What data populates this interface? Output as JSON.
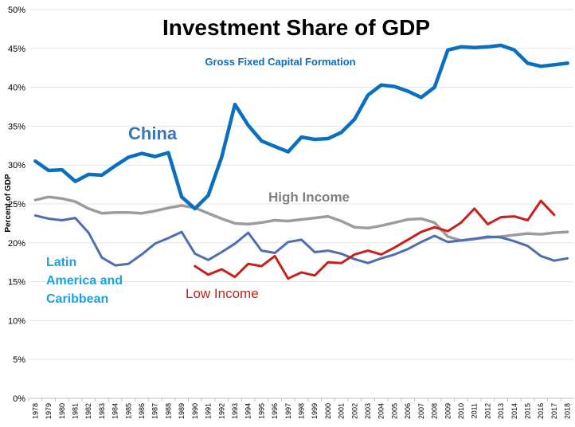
{
  "chart_data": {
    "type": "line",
    "title": "Investment Share of GDP",
    "subtitle": "Gross Fixed Capital Formation",
    "ylabel": "Percent of GDP",
    "xlabel": "",
    "ylim": [
      0,
      50
    ],
    "ytick_values": [
      0,
      5,
      10,
      15,
      20,
      25,
      30,
      35,
      40,
      45,
      50
    ],
    "ytick_labels": [
      "0%",
      "5%",
      "10%",
      "15%",
      "20%",
      "25%",
      "30%",
      "35%",
      "40%",
      "45%",
      "50%"
    ],
    "x": [
      "1978",
      "1979",
      "1980",
      "1981",
      "1982",
      "1983",
      "1984",
      "1985",
      "1986",
      "1987",
      "1988",
      "1989",
      "1990",
      "1991",
      "1992",
      "1993",
      "1994",
      "1995",
      "1996",
      "1997",
      "1998",
      "1999",
      "2000",
      "2001",
      "2002",
      "2003",
      "2004",
      "2005",
      "2006",
      "2007",
      "2008",
      "2009",
      "2010",
      "2011",
      "2012",
      "2013",
      "2014",
      "2015",
      "2016",
      "2017",
      "2018"
    ],
    "series": [
      {
        "name": "China",
        "label": "China",
        "color": "#0a6fc0",
        "label_color": "#3a76b8",
        "values": [
          30.5,
          29.3,
          29.4,
          27.9,
          28.8,
          28.7,
          29.9,
          31.0,
          31.5,
          31.1,
          31.6,
          25.9,
          24.4,
          26.1,
          31.0,
          37.8,
          35.1,
          33.1,
          32.4,
          31.7,
          33.6,
          33.3,
          33.4,
          34.2,
          35.9,
          39.0,
          40.3,
          40.1,
          39.5,
          38.7,
          40.0,
          44.8,
          45.2,
          45.1,
          45.2,
          45.4,
          44.8,
          43.1,
          42.7,
          42.9,
          43.1
        ]
      },
      {
        "name": "High Income",
        "label": "High Income",
        "color": "#9c9c9c",
        "label_color": "#808080",
        "values": [
          25.5,
          25.9,
          25.7,
          25.3,
          24.4,
          23.8,
          23.9,
          23.9,
          23.8,
          24.1,
          24.5,
          24.8,
          24.5,
          23.8,
          23.1,
          22.5,
          22.4,
          22.6,
          22.9,
          22.8,
          23.0,
          23.2,
          23.4,
          22.8,
          22.0,
          21.9,
          22.2,
          22.6,
          23.0,
          23.1,
          22.6,
          20.8,
          20.3,
          20.5,
          20.7,
          20.8,
          21.0,
          21.2,
          21.1,
          21.3,
          21.4
        ]
      },
      {
        "name": "Latin America and Caribbean",
        "label_lines": [
          "Latin",
          "America and",
          "Caribbean"
        ],
        "color": "#4d6fae",
        "label_color": "#1aa3dc",
        "values": [
          23.5,
          23.1,
          22.9,
          23.2,
          21.3,
          18.1,
          17.1,
          17.3,
          18.5,
          19.9,
          20.6,
          21.4,
          18.6,
          17.8,
          18.8,
          19.9,
          21.3,
          19.0,
          18.7,
          20.1,
          20.4,
          18.8,
          19.0,
          18.6,
          17.9,
          17.4,
          18.0,
          18.5,
          19.2,
          20.1,
          20.9,
          20.1,
          20.3,
          20.5,
          20.8,
          20.7,
          20.2,
          19.6,
          18.3,
          17.7,
          18.0
        ]
      },
      {
        "name": "Low Income",
        "label": "Low Income",
        "color": "#c8201a",
        "label_color": "#c8201a",
        "values": [
          null,
          null,
          null,
          null,
          null,
          null,
          null,
          null,
          null,
          null,
          null,
          null,
          17.0,
          15.9,
          16.6,
          15.6,
          17.3,
          17.0,
          18.3,
          15.4,
          16.2,
          15.8,
          17.5,
          17.4,
          18.5,
          19.0,
          18.5,
          19.4,
          20.4,
          21.4,
          22.0,
          21.5,
          22.6,
          24.4,
          22.4,
          23.3,
          23.4,
          22.9,
          25.4,
          23.6,
          null
        ]
      }
    ]
  }
}
